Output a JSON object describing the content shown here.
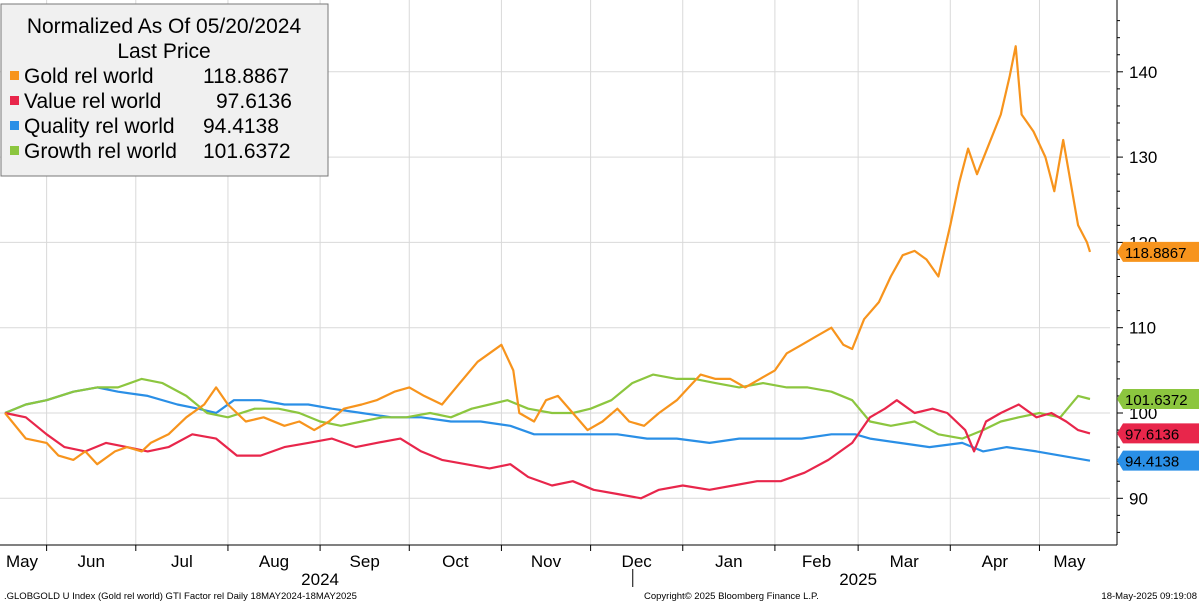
{
  "chart_data": {
    "type": "line",
    "title": "Normalized As Of 05/20/2024",
    "subtitle": "Last Price",
    "y_ticks": [
      90,
      100,
      110,
      120,
      130,
      140
    ],
    "ylim": [
      84,
      147
    ],
    "x_range": [
      "2024-05-18",
      "2025-05-18"
    ],
    "x_month_labels": [
      {
        "label": "May",
        "date": "2024-05-01"
      },
      {
        "label": "Jun",
        "date": "2024-06-01"
      },
      {
        "label": "Jul",
        "date": "2024-07-01"
      },
      {
        "label": "Aug",
        "date": "2024-08-01"
      },
      {
        "label": "Sep",
        "date": "2024-09-01"
      },
      {
        "label": "Oct",
        "date": "2024-10-01"
      },
      {
        "label": "Nov",
        "date": "2024-11-01"
      },
      {
        "label": "Dec",
        "date": "2024-12-01"
      },
      {
        "label": "Jan",
        "date": "2025-01-01"
      },
      {
        "label": "Feb",
        "date": "2025-02-01"
      },
      {
        "label": "Mar",
        "date": "2025-03-01"
      },
      {
        "label": "Apr",
        "date": "2025-04-01"
      },
      {
        "label": "May",
        "date": "2025-05-01"
      }
    ],
    "x_year_labels": [
      {
        "label": "2024",
        "date": "2024-09-01"
      },
      {
        "label": "2025",
        "date": "2025-03-01"
      }
    ],
    "grid": true,
    "legend_position": "top-left",
    "series": [
      {
        "name": "Gold rel world",
        "last": "118.8867",
        "color": "#f7941d",
        "points": [
          [
            "2024-05-18",
            100
          ],
          [
            "2024-05-25",
            97
          ],
          [
            "2024-06-01",
            96.5
          ],
          [
            "2024-06-05",
            95
          ],
          [
            "2024-06-10",
            94.5
          ],
          [
            "2024-06-14",
            95.5
          ],
          [
            "2024-06-18",
            94
          ],
          [
            "2024-06-24",
            95.5
          ],
          [
            "2024-06-28",
            96
          ],
          [
            "2024-07-03",
            95.5
          ],
          [
            "2024-07-06",
            96.5
          ],
          [
            "2024-07-12",
            97.5
          ],
          [
            "2024-07-18",
            99.5
          ],
          [
            "2024-07-24",
            101
          ],
          [
            "2024-07-28",
            103
          ],
          [
            "2024-08-01",
            101
          ],
          [
            "2024-08-07",
            99
          ],
          [
            "2024-08-13",
            99.5
          ],
          [
            "2024-08-20",
            98.5
          ],
          [
            "2024-08-25",
            99
          ],
          [
            "2024-08-30",
            98
          ],
          [
            "2024-09-04",
            99
          ],
          [
            "2024-09-09",
            100.5
          ],
          [
            "2024-09-15",
            101
          ],
          [
            "2024-09-20",
            101.5
          ],
          [
            "2024-09-26",
            102.5
          ],
          [
            "2024-10-01",
            103
          ],
          [
            "2024-10-06",
            102
          ],
          [
            "2024-10-12",
            101
          ],
          [
            "2024-10-18",
            103.5
          ],
          [
            "2024-10-24",
            106
          ],
          [
            "2024-10-28",
            107
          ],
          [
            "2024-11-01",
            108
          ],
          [
            "2024-11-05",
            105
          ],
          [
            "2024-11-07",
            100
          ],
          [
            "2024-11-12",
            99
          ],
          [
            "2024-11-16",
            101.5
          ],
          [
            "2024-11-20",
            102
          ],
          [
            "2024-11-25",
            100
          ],
          [
            "2024-11-30",
            98
          ],
          [
            "2024-12-05",
            99
          ],
          [
            "2024-12-10",
            100.5
          ],
          [
            "2024-12-14",
            99
          ],
          [
            "2024-12-19",
            98.5
          ],
          [
            "2024-12-24",
            100
          ],
          [
            "2024-12-30",
            101.5
          ],
          [
            "2025-01-03",
            103
          ],
          [
            "2025-01-07",
            104.5
          ],
          [
            "2025-01-12",
            104
          ],
          [
            "2025-01-17",
            104
          ],
          [
            "2025-01-22",
            103
          ],
          [
            "2025-01-27",
            104
          ],
          [
            "2025-02-01",
            105
          ],
          [
            "2025-02-05",
            107
          ],
          [
            "2025-02-10",
            108
          ],
          [
            "2025-02-15",
            109
          ],
          [
            "2025-02-20",
            110
          ],
          [
            "2025-02-24",
            108
          ],
          [
            "2025-02-27",
            107.5
          ],
          [
            "2025-03-03",
            111
          ],
          [
            "2025-03-08",
            113
          ],
          [
            "2025-03-12",
            116
          ],
          [
            "2025-03-16",
            118.5
          ],
          [
            "2025-03-20",
            119
          ],
          [
            "2025-03-24",
            118
          ],
          [
            "2025-03-28",
            116
          ],
          [
            "2025-04-01",
            122
          ],
          [
            "2025-04-04",
            127
          ],
          [
            "2025-04-07",
            131
          ],
          [
            "2025-04-10",
            128
          ],
          [
            "2025-04-14",
            131.5
          ],
          [
            "2025-04-18",
            135
          ],
          [
            "2025-04-21",
            139.5
          ],
          [
            "2025-04-23",
            143
          ],
          [
            "2025-04-25",
            135
          ],
          [
            "2025-04-29",
            133
          ],
          [
            "2025-05-03",
            130
          ],
          [
            "2025-05-06",
            126
          ],
          [
            "2025-05-09",
            132
          ],
          [
            "2025-05-11",
            128
          ],
          [
            "2025-05-14",
            122
          ],
          [
            "2025-05-17",
            120
          ],
          [
            "2025-05-18",
            118.8867
          ]
        ]
      },
      {
        "name": "Value rel world",
        "last": "97.6136",
        "color": "#e8264b",
        "points": [
          [
            "2024-05-18",
            100
          ],
          [
            "2024-05-25",
            99.5
          ],
          [
            "2024-06-01",
            97.5
          ],
          [
            "2024-06-07",
            96
          ],
          [
            "2024-06-14",
            95.5
          ],
          [
            "2024-06-21",
            96.5
          ],
          [
            "2024-06-28",
            96
          ],
          [
            "2024-07-05",
            95.5
          ],
          [
            "2024-07-12",
            96
          ],
          [
            "2024-07-20",
            97.5
          ],
          [
            "2024-07-28",
            97
          ],
          [
            "2024-08-04",
            95
          ],
          [
            "2024-08-12",
            95
          ],
          [
            "2024-08-20",
            96
          ],
          [
            "2024-08-28",
            96.5
          ],
          [
            "2024-09-05",
            97
          ],
          [
            "2024-09-13",
            96
          ],
          [
            "2024-09-20",
            96.5
          ],
          [
            "2024-09-28",
            97
          ],
          [
            "2024-10-05",
            95.5
          ],
          [
            "2024-10-12",
            94.5
          ],
          [
            "2024-10-20",
            94
          ],
          [
            "2024-10-28",
            93.5
          ],
          [
            "2024-11-04",
            94
          ],
          [
            "2024-11-10",
            92.5
          ],
          [
            "2024-11-18",
            91.5
          ],
          [
            "2024-11-25",
            92
          ],
          [
            "2024-12-02",
            91
          ],
          [
            "2024-12-10",
            90.5
          ],
          [
            "2024-12-18",
            90
          ],
          [
            "2024-12-24",
            91
          ],
          [
            "2025-01-01",
            91.5
          ],
          [
            "2025-01-10",
            91
          ],
          [
            "2025-01-18",
            91.5
          ],
          [
            "2025-01-26",
            92
          ],
          [
            "2025-02-03",
            92
          ],
          [
            "2025-02-11",
            93
          ],
          [
            "2025-02-19",
            94.5
          ],
          [
            "2025-02-27",
            96.5
          ],
          [
            "2025-03-05",
            99.5
          ],
          [
            "2025-03-10",
            100.5
          ],
          [
            "2025-03-14",
            101.5
          ],
          [
            "2025-03-20",
            100
          ],
          [
            "2025-03-26",
            100.5
          ],
          [
            "2025-03-31",
            100
          ],
          [
            "2025-04-06",
            98
          ],
          [
            "2025-04-09",
            95.5
          ],
          [
            "2025-04-13",
            99
          ],
          [
            "2025-04-18",
            100
          ],
          [
            "2025-04-24",
            101
          ],
          [
            "2025-04-30",
            99.5
          ],
          [
            "2025-05-05",
            100
          ],
          [
            "2025-05-10",
            99
          ],
          [
            "2025-05-14",
            98
          ],
          [
            "2025-05-18",
            97.6136
          ]
        ]
      },
      {
        "name": "Quality rel world",
        "last": "94.4138",
        "color": "#2a8fe6",
        "points": [
          [
            "2024-05-18",
            100
          ],
          [
            "2024-05-25",
            101
          ],
          [
            "2024-06-01",
            101.5
          ],
          [
            "2024-06-10",
            102.5
          ],
          [
            "2024-06-18",
            103
          ],
          [
            "2024-06-25",
            102.5
          ],
          [
            "2024-07-05",
            102
          ],
          [
            "2024-07-15",
            101
          ],
          [
            "2024-07-22",
            100.5
          ],
          [
            "2024-07-28",
            100
          ],
          [
            "2024-08-03",
            101.5
          ],
          [
            "2024-08-12",
            101.5
          ],
          [
            "2024-08-20",
            101
          ],
          [
            "2024-08-28",
            101
          ],
          [
            "2024-09-05",
            100.5
          ],
          [
            "2024-09-15",
            100
          ],
          [
            "2024-09-25",
            99.5
          ],
          [
            "2024-10-05",
            99.5
          ],
          [
            "2024-10-15",
            99
          ],
          [
            "2024-10-25",
            99
          ],
          [
            "2024-11-04",
            98.5
          ],
          [
            "2024-11-12",
            97.5
          ],
          [
            "2024-11-20",
            97.5
          ],
          [
            "2024-11-30",
            97.5
          ],
          [
            "2024-12-10",
            97.5
          ],
          [
            "2024-12-20",
            97
          ],
          [
            "2024-12-30",
            97
          ],
          [
            "2025-01-10",
            96.5
          ],
          [
            "2025-01-20",
            97
          ],
          [
            "2025-01-30",
            97
          ],
          [
            "2025-02-10",
            97
          ],
          [
            "2025-02-20",
            97.5
          ],
          [
            "2025-02-28",
            97.5
          ],
          [
            "2025-03-05",
            97
          ],
          [
            "2025-03-15",
            96.5
          ],
          [
            "2025-03-25",
            96
          ],
          [
            "2025-04-05",
            96.5
          ],
          [
            "2025-04-12",
            95.5
          ],
          [
            "2025-04-20",
            96
          ],
          [
            "2025-04-30",
            95.5
          ],
          [
            "2025-05-08",
            95
          ],
          [
            "2025-05-18",
            94.4138
          ]
        ]
      },
      {
        "name": "Growth rel world",
        "last": "101.6372",
        "color": "#8cc63f",
        "points": [
          [
            "2024-05-18",
            100
          ],
          [
            "2024-05-25",
            101
          ],
          [
            "2024-06-01",
            101.5
          ],
          [
            "2024-06-10",
            102.5
          ],
          [
            "2024-06-18",
            103
          ],
          [
            "2024-06-25",
            103
          ],
          [
            "2024-07-03",
            104
          ],
          [
            "2024-07-10",
            103.5
          ],
          [
            "2024-07-18",
            102
          ],
          [
            "2024-07-25",
            100
          ],
          [
            "2024-08-01",
            99.5
          ],
          [
            "2024-08-10",
            100.5
          ],
          [
            "2024-08-18",
            100.5
          ],
          [
            "2024-08-25",
            100
          ],
          [
            "2024-09-01",
            99
          ],
          [
            "2024-09-08",
            98.5
          ],
          [
            "2024-09-15",
            99
          ],
          [
            "2024-09-22",
            99.5
          ],
          [
            "2024-09-30",
            99.5
          ],
          [
            "2024-10-08",
            100
          ],
          [
            "2024-10-15",
            99.5
          ],
          [
            "2024-10-22",
            100.5
          ],
          [
            "2024-10-28",
            101
          ],
          [
            "2024-11-03",
            101.5
          ],
          [
            "2024-11-10",
            100.5
          ],
          [
            "2024-11-18",
            100
          ],
          [
            "2024-11-25",
            100
          ],
          [
            "2024-12-01",
            100.5
          ],
          [
            "2024-12-08",
            101.5
          ],
          [
            "2024-12-15",
            103.5
          ],
          [
            "2024-12-22",
            104.5
          ],
          [
            "2024-12-30",
            104
          ],
          [
            "2025-01-05",
            104
          ],
          [
            "2025-01-12",
            103.5
          ],
          [
            "2025-01-20",
            103
          ],
          [
            "2025-01-28",
            103.5
          ],
          [
            "2025-02-05",
            103
          ],
          [
            "2025-02-12",
            103
          ],
          [
            "2025-02-20",
            102.5
          ],
          [
            "2025-02-27",
            101.5
          ],
          [
            "2025-03-05",
            99
          ],
          [
            "2025-03-12",
            98.5
          ],
          [
            "2025-03-20",
            99
          ],
          [
            "2025-03-28",
            97.5
          ],
          [
            "2025-04-05",
            97
          ],
          [
            "2025-04-12",
            98
          ],
          [
            "2025-04-18",
            99
          ],
          [
            "2025-04-24",
            99.5
          ],
          [
            "2025-05-01",
            100
          ],
          [
            "2025-05-08",
            99.5
          ],
          [
            "2025-05-14",
            102
          ],
          [
            "2025-05-18",
            101.6372
          ]
        ]
      }
    ]
  },
  "footer": {
    "left": ".GLOBGOLD U Index (Gold rel world) GTI Factor rel  Daily 18MAY2024-18MAY2025",
    "center": "Copyright© 2025 Bloomberg Finance L.P.",
    "right": "18-May-2025 09:19:08"
  }
}
